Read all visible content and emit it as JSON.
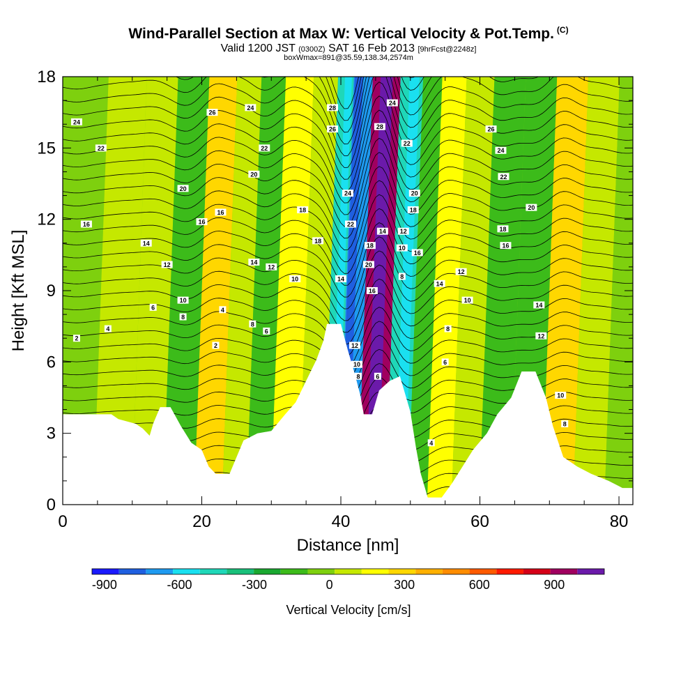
{
  "header": {
    "title": "Wind-Parallel Section at Max W: Vertical Velocity & Pot.Temp.",
    "copyright": "(C)",
    "valid_prefix": "Valid 1200 JST",
    "valid_utc": "(0300Z)",
    "valid_date": "SAT 16 Feb 2013",
    "forecast": "[9hrFcst@2248z]",
    "box_info": "boxWmax=891@35.59,138.34,2574m"
  },
  "colors": {
    "palette": [
      "#1a1aff",
      "#1f5fe0",
      "#1e9af0",
      "#1ae0f0",
      "#1fd7b8",
      "#19c07a",
      "#1aa830",
      "#3cbb1a",
      "#7ed00e",
      "#c5e800",
      "#ffff00",
      "#ffd700",
      "#ffb000",
      "#ff8c00",
      "#ff5a00",
      "#ff1a00",
      "#d50018",
      "#a0005f",
      "#6b1aaa"
    ],
    "contour": "#000000",
    "terrain": "#ffffff"
  },
  "chart_data": {
    "type": "heatmap",
    "xlabel": "Distance [nm]",
    "ylabel": "Height [Kft MSL]",
    "xlim": [
      0,
      82
    ],
    "ylim": [
      0,
      18
    ],
    "x_ticks": [
      0,
      20,
      40,
      60,
      80
    ],
    "y_ticks": [
      0,
      3,
      6,
      9,
      12,
      15,
      18
    ],
    "colorbar": {
      "label": "Vertical Velocity [cm/s]",
      "range": [
        -950,
        1100
      ],
      "tick_values": [
        -900,
        -600,
        -300,
        0,
        300,
        600,
        900
      ],
      "tick_labels": [
        "-900",
        "-600",
        "-300",
        "0",
        "300",
        "600",
        "900"
      ]
    },
    "vertical_velocity_bands": [
      {
        "x_center": 2,
        "w": -70
      },
      {
        "x_center": 9,
        "w": 40
      },
      {
        "x_center": 13,
        "w": 80
      },
      {
        "x_center": 18,
        "w": -150
      },
      {
        "x_center": 22,
        "w": 250
      },
      {
        "x_center": 26,
        "w": 120
      },
      {
        "x_center": 29,
        "w": -140
      },
      {
        "x_center": 33,
        "w": 200
      },
      {
        "x_center": 37,
        "w": 50
      },
      {
        "x_center": 40,
        "w": -500
      },
      {
        "x_center": 41.5,
        "w": -650
      },
      {
        "x_center": 45.5,
        "w": 890
      },
      {
        "x_center": 49.5,
        "w": -500
      },
      {
        "x_center": 52,
        "w": -150
      },
      {
        "x_center": 55,
        "w": 220
      },
      {
        "x_center": 59,
        "w": 80
      },
      {
        "x_center": 63,
        "w": -170
      },
      {
        "x_center": 68,
        "w": -120
      },
      {
        "x_center": 72,
        "w": 250
      },
      {
        "x_center": 77,
        "w": 40
      },
      {
        "x_center": 81,
        "w": -60
      }
    ],
    "terrain_profile": [
      {
        "x": 0,
        "h": 3.8
      },
      {
        "x": 7,
        "h": 3.8
      },
      {
        "x": 8,
        "h": 3.6
      },
      {
        "x": 10.5,
        "h": 3.4
      },
      {
        "x": 11.5,
        "h": 3.2
      },
      {
        "x": 12.5,
        "h": 2.9
      },
      {
        "x": 13,
        "h": 3.4
      },
      {
        "x": 14,
        "h": 4.1
      },
      {
        "x": 15.5,
        "h": 4.1
      },
      {
        "x": 17,
        "h": 3.3
      },
      {
        "x": 18.5,
        "h": 2.6
      },
      {
        "x": 20,
        "h": 2.3
      },
      {
        "x": 21,
        "h": 1.6
      },
      {
        "x": 22,
        "h": 1.3
      },
      {
        "x": 24,
        "h": 1.3
      },
      {
        "x": 25,
        "h": 2.0
      },
      {
        "x": 26,
        "h": 2.7
      },
      {
        "x": 28,
        "h": 3.0
      },
      {
        "x": 30,
        "h": 3.1
      },
      {
        "x": 32,
        "h": 3.8
      },
      {
        "x": 33.5,
        "h": 4.3
      },
      {
        "x": 35,
        "h": 5.2
      },
      {
        "x": 36.5,
        "h": 6.1
      },
      {
        "x": 37.5,
        "h": 6.9
      },
      {
        "x": 38,
        "h": 7.6
      },
      {
        "x": 40,
        "h": 7.6
      },
      {
        "x": 41,
        "h": 6.5
      },
      {
        "x": 42,
        "h": 5.5
      },
      {
        "x": 42.8,
        "h": 4.6
      },
      {
        "x": 43.3,
        "h": 3.8
      },
      {
        "x": 44.5,
        "h": 3.8
      },
      {
        "x": 45.5,
        "h": 4.8
      },
      {
        "x": 47,
        "h": 5.2
      },
      {
        "x": 48.5,
        "h": 5.4
      },
      {
        "x": 50,
        "h": 3.9
      },
      {
        "x": 50.8,
        "h": 2.4
      },
      {
        "x": 51.5,
        "h": 1.3
      },
      {
        "x": 52.5,
        "h": 0.3
      },
      {
        "x": 54.5,
        "h": 0.3
      },
      {
        "x": 56,
        "h": 0.9
      },
      {
        "x": 57.5,
        "h": 1.6
      },
      {
        "x": 59,
        "h": 2.3
      },
      {
        "x": 61,
        "h": 3.0
      },
      {
        "x": 62.5,
        "h": 3.8
      },
      {
        "x": 64.5,
        "h": 4.5
      },
      {
        "x": 66,
        "h": 5.6
      },
      {
        "x": 68,
        "h": 5.6
      },
      {
        "x": 69.5,
        "h": 4.5
      },
      {
        "x": 70.5,
        "h": 3.3
      },
      {
        "x": 72,
        "h": 2.0
      },
      {
        "x": 74,
        "h": 1.6
      },
      {
        "x": 76,
        "h": 1.3
      },
      {
        "x": 78.5,
        "h": 1.0
      },
      {
        "x": 80.5,
        "h": 0.7
      },
      {
        "x": 82,
        "h": 0.7
      }
    ],
    "contour_labels": [
      {
        "x": 2,
        "y": 16.1,
        "text": "24"
      },
      {
        "x": 5.5,
        "y": 15.0,
        "text": "22"
      },
      {
        "x": 3.4,
        "y": 11.8,
        "text": "16"
      },
      {
        "x": 12,
        "y": 11.0,
        "text": "14"
      },
      {
        "x": 15,
        "y": 10.1,
        "text": "12"
      },
      {
        "x": 2,
        "y": 7.0,
        "text": "2"
      },
      {
        "x": 6.5,
        "y": 7.4,
        "text": "4"
      },
      {
        "x": 13,
        "y": 8.3,
        "text": "6"
      },
      {
        "x": 17.3,
        "y": 13.3,
        "text": "20"
      },
      {
        "x": 20,
        "y": 11.9,
        "text": "16"
      },
      {
        "x": 21.5,
        "y": 16.5,
        "text": "26"
      },
      {
        "x": 22.7,
        "y": 12.3,
        "text": "16"
      },
      {
        "x": 17.3,
        "y": 8.6,
        "text": "10"
      },
      {
        "x": 17.3,
        "y": 7.9,
        "text": "8"
      },
      {
        "x": 23,
        "y": 8.2,
        "text": "4"
      },
      {
        "x": 22,
        "y": 6.7,
        "text": "2"
      },
      {
        "x": 27,
        "y": 16.7,
        "text": "24"
      },
      {
        "x": 29,
        "y": 15.0,
        "text": "22"
      },
      {
        "x": 27.5,
        "y": 13.9,
        "text": "20"
      },
      {
        "x": 34.5,
        "y": 12.4,
        "text": "18"
      },
      {
        "x": 36.7,
        "y": 11.1,
        "text": "18"
      },
      {
        "x": 27.5,
        "y": 10.2,
        "text": "14"
      },
      {
        "x": 30,
        "y": 10.0,
        "text": "12"
      },
      {
        "x": 33.4,
        "y": 9.5,
        "text": "10"
      },
      {
        "x": 27.3,
        "y": 7.6,
        "text": "8"
      },
      {
        "x": 29.3,
        "y": 7.3,
        "text": "6"
      },
      {
        "x": 38.8,
        "y": 16.7,
        "text": "28"
      },
      {
        "x": 38.8,
        "y": 15.8,
        "text": "26"
      },
      {
        "x": 41,
        "y": 13.1,
        "text": "24"
      },
      {
        "x": 41.4,
        "y": 11.8,
        "text": "22"
      },
      {
        "x": 44.2,
        "y": 10.9,
        "text": "18"
      },
      {
        "x": 44,
        "y": 10.1,
        "text": "20"
      },
      {
        "x": 40,
        "y": 9.5,
        "text": "14"
      },
      {
        "x": 44.5,
        "y": 9.0,
        "text": "16"
      },
      {
        "x": 42,
        "y": 6.7,
        "text": "12"
      },
      {
        "x": 42.3,
        "y": 5.9,
        "text": "10"
      },
      {
        "x": 42.5,
        "y": 5.4,
        "text": "8"
      },
      {
        "x": 45.3,
        "y": 5.4,
        "text": "6"
      },
      {
        "x": 47.4,
        "y": 16.9,
        "text": "24"
      },
      {
        "x": 45.6,
        "y": 15.9,
        "text": "28"
      },
      {
        "x": 49.5,
        "y": 15.2,
        "text": "22"
      },
      {
        "x": 50.6,
        "y": 13.1,
        "text": "20"
      },
      {
        "x": 50.4,
        "y": 12.4,
        "text": "18"
      },
      {
        "x": 46,
        "y": 11.5,
        "text": "14"
      },
      {
        "x": 49,
        "y": 11.5,
        "text": "12"
      },
      {
        "x": 48.8,
        "y": 10.8,
        "text": "10"
      },
      {
        "x": 51,
        "y": 10.6,
        "text": "16"
      },
      {
        "x": 48.8,
        "y": 9.6,
        "text": "8"
      },
      {
        "x": 54.2,
        "y": 9.3,
        "text": "14"
      },
      {
        "x": 57.3,
        "y": 9.8,
        "text": "12"
      },
      {
        "x": 58.2,
        "y": 8.6,
        "text": "10"
      },
      {
        "x": 55.4,
        "y": 7.4,
        "text": "8"
      },
      {
        "x": 55,
        "y": 6.0,
        "text": "6"
      },
      {
        "x": 53,
        "y": 2.6,
        "text": "4"
      },
      {
        "x": 61.6,
        "y": 15.8,
        "text": "26"
      },
      {
        "x": 63,
        "y": 14.9,
        "text": "24"
      },
      {
        "x": 63.4,
        "y": 13.8,
        "text": "22"
      },
      {
        "x": 67.4,
        "y": 12.5,
        "text": "20"
      },
      {
        "x": 63.3,
        "y": 11.6,
        "text": "18"
      },
      {
        "x": 63.7,
        "y": 10.9,
        "text": "16"
      },
      {
        "x": 68.5,
        "y": 8.4,
        "text": "14"
      },
      {
        "x": 68.8,
        "y": 7.1,
        "text": "12"
      },
      {
        "x": 71.6,
        "y": 4.6,
        "text": "10"
      },
      {
        "x": 72.2,
        "y": 3.4,
        "text": "8"
      }
    ]
  }
}
